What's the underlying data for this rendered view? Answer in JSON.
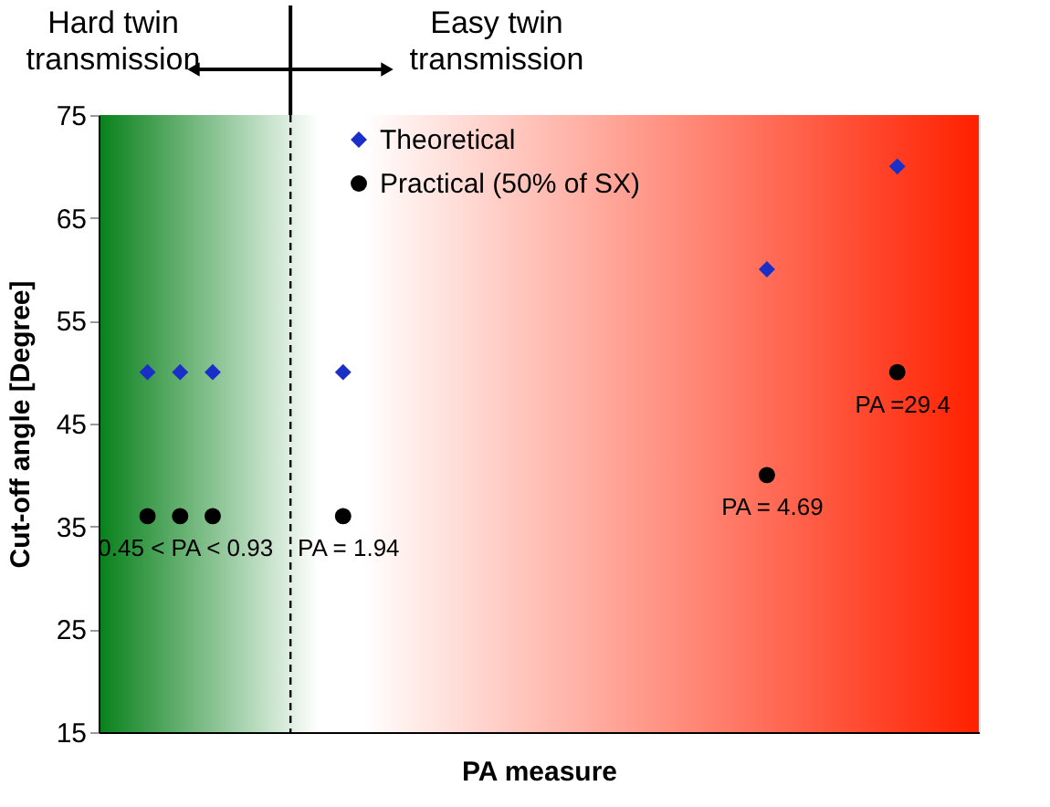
{
  "chart_data": {
    "type": "scatter",
    "xlabel": "PA measure",
    "ylabel": "Cut-off angle [Degree]",
    "categories": [
      null,
      null,
      null,
      null,
      null,
      null,
      null,
      null,
      null,
      null,
      null,
      null,
      null,
      null,
      null,
      null,
      null,
      null,
      null,
      null,
      null,
      null,
      null,
      null,
      null,
      null,
      null
    ],
    "ylim": [
      15,
      75
    ],
    "yticks": [
      15,
      25,
      35,
      45,
      55,
      65,
      75
    ],
    "grid": false,
    "legend": "top",
    "series": [
      {
        "name": "Theoretical",
        "color": "#1a2fc8",
        "marker": "diamond",
        "values": [
          null,
          50,
          50,
          50,
          null,
          null,
          null,
          50,
          null,
          null,
          null,
          null,
          null,
          null,
          null,
          null,
          null,
          null,
          null,
          null,
          60,
          null,
          null,
          null,
          70,
          null,
          null
        ]
      },
      {
        "name": "Practical (50% of SX)",
        "color": "#000000",
        "marker": "circle",
        "values": [
          null,
          36,
          36,
          36,
          null,
          null,
          null,
          36,
          null,
          null,
          null,
          null,
          null,
          null,
          null,
          null,
          null,
          null,
          null,
          null,
          40,
          null,
          null,
          null,
          50,
          null,
          null
        ]
      }
    ],
    "annotations": [
      "Hard twin transmission",
      "Easy twin transmission",
      {
        "text": "0.45 < PA < 0.93",
        "y": 36
      },
      {
        "text": "PA = 1.94",
        "y": 36
      },
      {
        "text": "PA = 4.69",
        "y": 40
      },
      {
        "text": "PA =29.4",
        "y": 50
      }
    ]
  }
}
